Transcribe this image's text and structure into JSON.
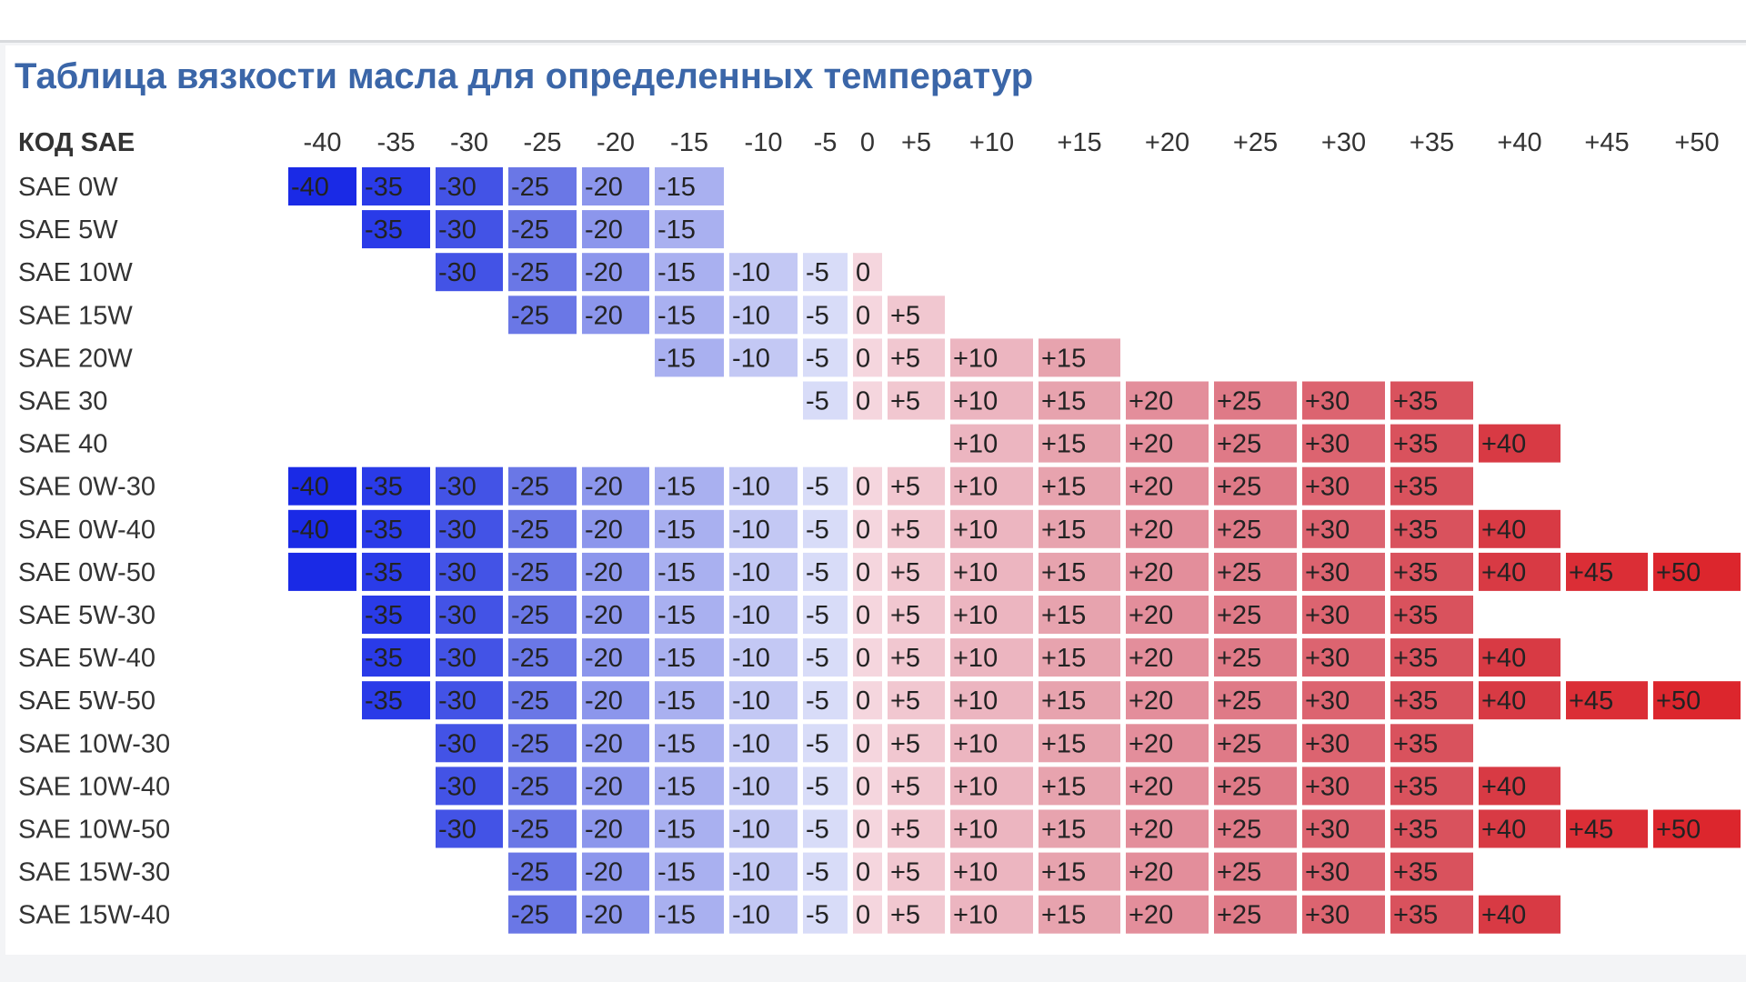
{
  "title": "Таблица вязкости масла для определенных температур",
  "chart_data": {
    "type": "table",
    "row_header": "КОД SAE",
    "columns": [
      "-40",
      "-35",
      "-30",
      "-25",
      "-20",
      "-15",
      "-10",
      "-5",
      "0",
      "+5",
      "+10",
      "+15",
      "+20",
      "+25",
      "+30",
      "+35",
      "+40",
      "+45",
      "+50"
    ],
    "rows": [
      {
        "label": "SAE 0W",
        "from": 0,
        "to": 5
      },
      {
        "label": "SAE 5W",
        "from": 1,
        "to": 5
      },
      {
        "label": "SAE 10W",
        "from": 2,
        "to": 8
      },
      {
        "label": "SAE 15W",
        "from": 3,
        "to": 9
      },
      {
        "label": "SAE 20W",
        "from": 5,
        "to": 11
      },
      {
        "label": "SAE 30",
        "from": 7,
        "to": 15
      },
      {
        "label": "SAE 40",
        "from": 10,
        "to": 16
      },
      {
        "label": "SAE 0W-30",
        "from": 0,
        "to": 15
      },
      {
        "label": "SAE 0W-40",
        "from": 0,
        "to": 16
      },
      {
        "label": "SAE 0W-50",
        "from": 0,
        "to": 18,
        "hidden_labels": [
          0
        ]
      },
      {
        "label": "SAE 5W-30",
        "from": 1,
        "to": 15
      },
      {
        "label": "SAE 5W-40",
        "from": 1,
        "to": 16
      },
      {
        "label": "SAE 5W-50",
        "from": 1,
        "to": 18
      },
      {
        "label": "SAE 10W-30",
        "from": 2,
        "to": 15
      },
      {
        "label": "SAE 10W-40",
        "from": 2,
        "to": 16
      },
      {
        "label": "SAE 10W-50",
        "from": 2,
        "to": 18
      },
      {
        "label": "SAE 15W-30",
        "from": 3,
        "to": 15
      },
      {
        "label": "SAE 15W-40",
        "from": 3,
        "to": 16
      }
    ],
    "colors": [
      "#1a2ae6",
      "#2a3be8",
      "#4353e6",
      "#6a77e6",
      "#8c96ec",
      "#a9b0f0",
      "#c3c8f4",
      "#d8dcf8",
      "#f5d6de",
      "#f1c7d0",
      "#ecb5c0",
      "#e7a3ae",
      "#e38e9b",
      "#df7a87",
      "#dc6470",
      "#d9525d",
      "#d83a44",
      "#db2e36",
      "#dc262d"
    ]
  }
}
